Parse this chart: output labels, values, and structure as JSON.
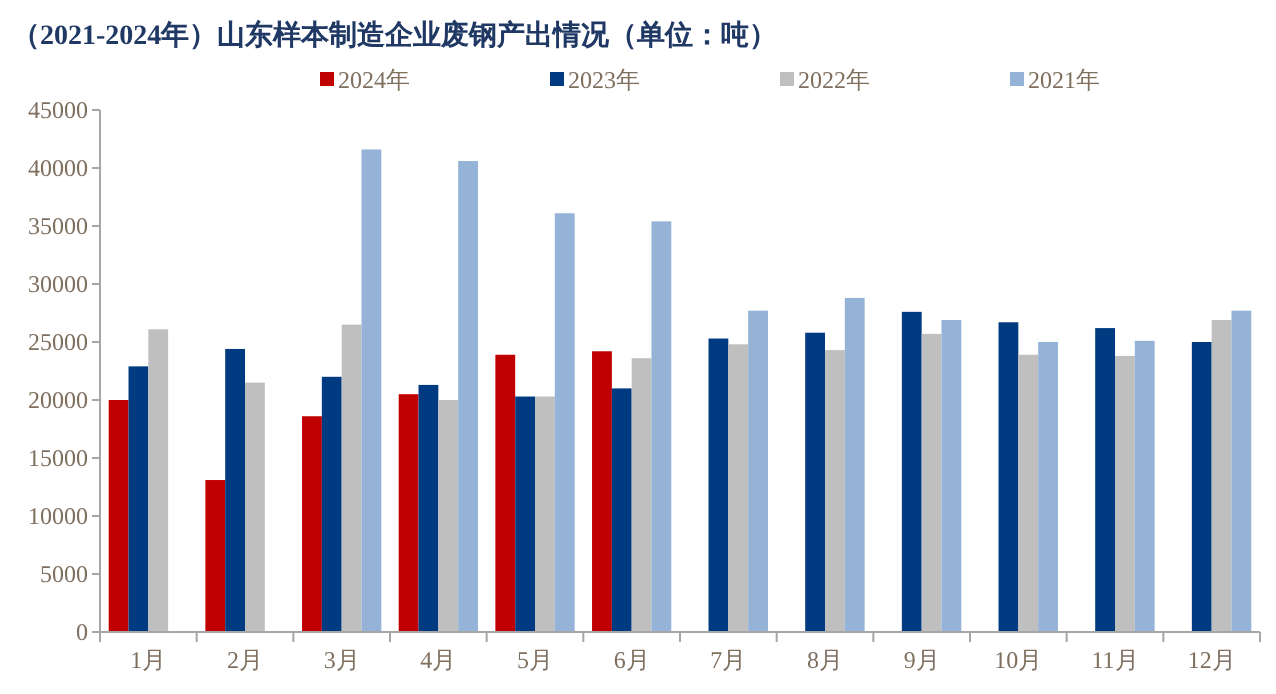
{
  "chart_data": {
    "type": "bar",
    "title": "（2021-2024年）山东样本制造企业废钢产出情况（单位：吨）",
    "categories": [
      "1月",
      "2月",
      "3月",
      "4月",
      "5月",
      "6月",
      "7月",
      "8月",
      "9月",
      "10月",
      "11月",
      "12月"
    ],
    "series": [
      {
        "name": "2024年",
        "color": "#c00000",
        "values": [
          20000,
          13100,
          18600,
          20500,
          23900,
          24200,
          null,
          null,
          null,
          null,
          null,
          null
        ]
      },
      {
        "name": "2023年",
        "color": "#003a80",
        "values": [
          22900,
          24400,
          22000,
          21300,
          20300,
          21000,
          25300,
          25800,
          27600,
          26700,
          26200,
          25000
        ]
      },
      {
        "name": "2022年",
        "color": "#bfbfbf",
        "values": [
          26100,
          21500,
          26500,
          20000,
          20300,
          23600,
          24800,
          24300,
          25700,
          23900,
          23800,
          26900
        ]
      },
      {
        "name": "2021年",
        "color": "#95b3d7",
        "values": [
          null,
          null,
          41600,
          40600,
          36100,
          35400,
          27700,
          28800,
          26900,
          25000,
          25100,
          27700
        ]
      }
    ],
    "ylim": [
      0,
      45000
    ],
    "yticks": [
      0,
      5000,
      10000,
      15000,
      20000,
      25000,
      30000,
      35000,
      40000,
      45000
    ],
    "grid": false,
    "legend": "top"
  }
}
